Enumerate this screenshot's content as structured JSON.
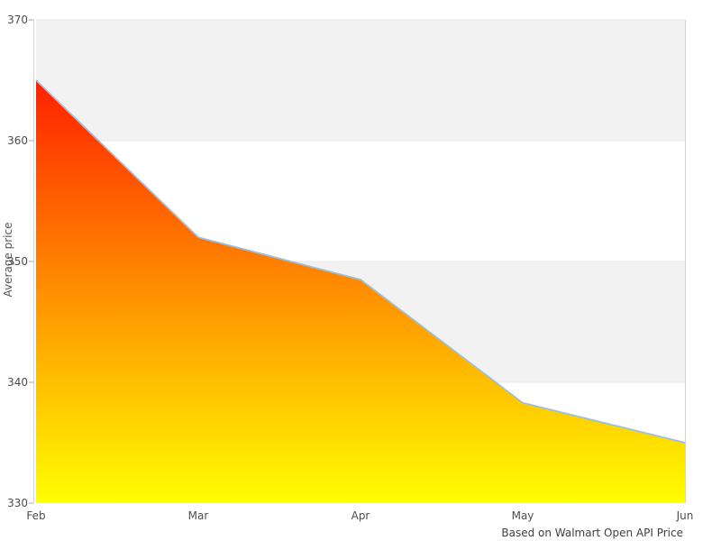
{
  "chart_data": {
    "type": "area",
    "title": "",
    "x": [
      "Feb",
      "Mar",
      "Apr",
      "May",
      "Jun"
    ],
    "series": [
      {
        "name": "Average price",
        "values": [
          365,
          352,
          348.5,
          338.3,
          335
        ]
      }
    ],
    "xlabel": "",
    "ylabel": "Average price",
    "ylim": [
      330,
      370
    ],
    "yticks": [
      330,
      340,
      350,
      360,
      370
    ],
    "grid": "alternating horizontal gray/white bands, gray between 360-370 and 340-350",
    "legend": "none",
    "caption": "Based on Walmart Open API Price"
  },
  "colors": {
    "gradient_top": "#ff0000",
    "gradient_bottom": "#ffff00",
    "line": "#9bbfdf",
    "band_gray": "#f2f2f2",
    "band_edge": "#e8e8e8",
    "axis_line": "#d5d5d5",
    "tick_mark": "#aaaaaa",
    "tick_text": "#4d4d4d",
    "caption_text": "#404040",
    "background": "#ffffff"
  }
}
